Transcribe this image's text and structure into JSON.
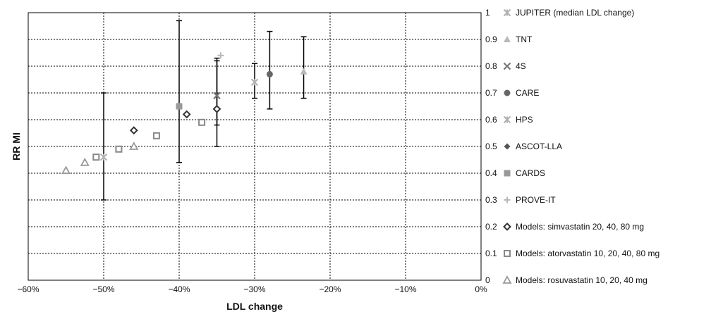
{
  "chart_data": {
    "type": "scatter",
    "xlabel": "LDL change",
    "ylabel": "RR MI",
    "xlim": [
      -0.6,
      0
    ],
    "ylim": [
      0,
      1
    ],
    "x_ticks": [
      "−60%",
      "−50%",
      "−40%",
      "−30%",
      "−20%",
      "−10%",
      "0%"
    ],
    "y_ticks": [
      "0",
      "0.1",
      "0.2",
      "0.3",
      "0.4",
      "0.5",
      "0.6",
      "0.7",
      "0.8",
      "0.9",
      "1"
    ],
    "grid": true,
    "legend_position": "right",
    "series": [
      {
        "name": "JUPITER (median LDL change)",
        "marker": "asterisk",
        "color": "#b0b0b0",
        "points": [
          {
            "x": -0.5,
            "y": 0.46,
            "lo": 0.3,
            "hi": 0.7
          }
        ]
      },
      {
        "name": "TNT",
        "marker": "triangle",
        "color": "#b8b8b8",
        "points": [
          {
            "x": -0.235,
            "y": 0.78,
            "lo": 0.68,
            "hi": 0.91
          }
        ]
      },
      {
        "name": "4S",
        "marker": "x",
        "color": "#777777",
        "points": [
          {
            "x": -0.35,
            "y": 0.69,
            "lo": 0.58,
            "hi": 0.83
          }
        ]
      },
      {
        "name": "CARE",
        "marker": "circle",
        "color": "#666666",
        "points": [
          {
            "x": -0.28,
            "y": 0.77,
            "lo": 0.64,
            "hi": 0.93
          }
        ]
      },
      {
        "name": "HPS",
        "marker": "asterisk",
        "color": "#b0b0b0",
        "points": [
          {
            "x": -0.3,
            "y": 0.74,
            "lo": 0.68,
            "hi": 0.81
          }
        ]
      },
      {
        "name": "ASCOT-LLA",
        "marker": "diamond",
        "color": "#555555",
        "points": [
          {
            "x": -0.35,
            "y": 0.64,
            "lo": 0.5,
            "hi": 0.82
          }
        ]
      },
      {
        "name": "CARDS",
        "marker": "square",
        "color": "#999999",
        "points": [
          {
            "x": -0.4,
            "y": 0.65,
            "lo": 0.44,
            "hi": 0.97
          }
        ]
      },
      {
        "name": "PROVE-IT",
        "marker": "plus",
        "color": "#b8b8b8",
        "points": [
          {
            "x": -0.345,
            "y": 0.84
          }
        ]
      },
      {
        "name": "Models: simvastatin 20, 40, 80 mg",
        "marker": "diamond-open",
        "color": "#333333",
        "points": [
          {
            "x": -0.46,
            "y": 0.56
          },
          {
            "x": -0.39,
            "y": 0.62
          },
          {
            "x": -0.35,
            "y": 0.64
          }
        ]
      },
      {
        "name": "Models: atorvastatin 10, 20, 40, 80 mg",
        "marker": "square-open",
        "color": "#888888",
        "points": [
          {
            "x": -0.51,
            "y": 0.46
          },
          {
            "x": -0.48,
            "y": 0.49
          },
          {
            "x": -0.43,
            "y": 0.54
          },
          {
            "x": -0.37,
            "y": 0.59
          }
        ]
      },
      {
        "name": "Models: rosuvastatin 10, 20, 40 mg",
        "marker": "triangle-open",
        "color": "#999999",
        "points": [
          {
            "x": -0.55,
            "y": 0.41
          },
          {
            "x": -0.525,
            "y": 0.44
          },
          {
            "x": -0.46,
            "y": 0.5
          }
        ]
      }
    ]
  }
}
